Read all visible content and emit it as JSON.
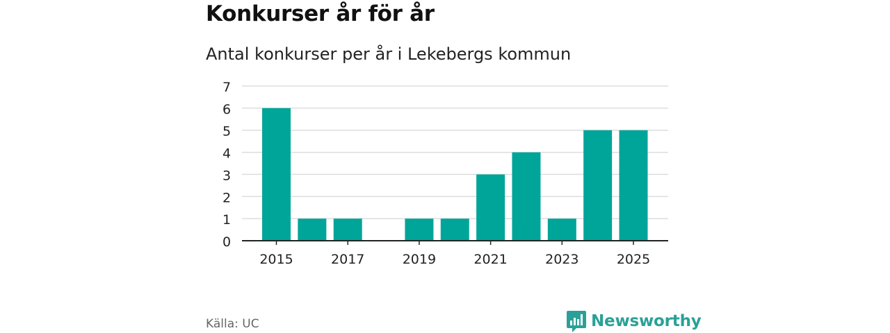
{
  "header": {
    "title": "Konkurser år för år",
    "subtitle": "Antal konkurser per år i Lekebergs kommun"
  },
  "footer": {
    "source": "Källa: UC",
    "brand": "Newsworthy"
  },
  "colors": {
    "bar": "#00a59a",
    "grid": "#dddddd",
    "axis": "#222222",
    "brand": "#2aa198"
  },
  "chart_data": {
    "type": "bar",
    "title": "Konkurser år för år",
    "subtitle": "Antal konkurser per år i Lekebergs kommun",
    "categories": [
      "2015",
      "2016",
      "2017",
      "2018",
      "2019",
      "2020",
      "2021",
      "2022",
      "2023",
      "2024",
      "2025"
    ],
    "values": [
      6,
      1,
      1,
      0,
      1,
      1,
      3,
      4,
      1,
      5,
      5
    ],
    "x_tick_labels": [
      "2015",
      "2017",
      "2019",
      "2021",
      "2023",
      "2025"
    ],
    "y_ticks": [
      0,
      1,
      2,
      3,
      4,
      5,
      6,
      7
    ],
    "ylim": [
      0,
      7
    ],
    "xlabel": "",
    "ylabel": "",
    "grid": true,
    "legend": "none"
  }
}
